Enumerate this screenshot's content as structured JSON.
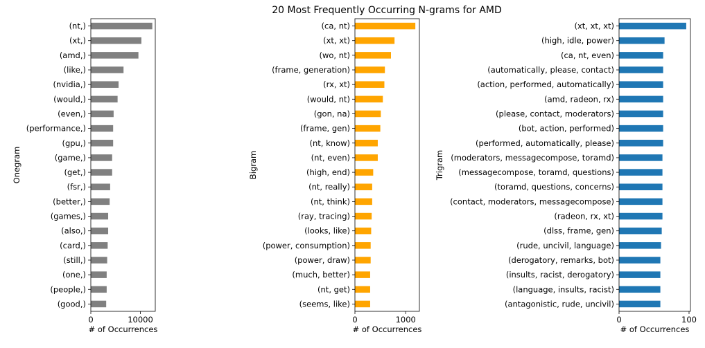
{
  "figure": {
    "suptitle": "20 Most Frequently Occurring N-grams for AMD"
  },
  "chart_data": [
    {
      "type": "bar",
      "orientation": "horizontal",
      "title": "",
      "xlabel": "# of Occurrences",
      "ylabel": "Onegram",
      "color": "#808080",
      "xlim": [
        0,
        13000
      ],
      "xticks": [
        0,
        10000
      ],
      "categories": [
        "(nt,)",
        "(xt,)",
        "(amd,)",
        "(like,)",
        "(nvidia,)",
        "(would,)",
        "(even,)",
        "(performance,)",
        "(gpu,)",
        "(game,)",
        "(get,)",
        "(fsr,)",
        "(better,)",
        "(games,)",
        "(also,)",
        "(card,)",
        "(still,)",
        "(one,)",
        "(people,)",
        "(good,)"
      ],
      "values": [
        12400,
        10200,
        9600,
        6600,
        5600,
        5400,
        4600,
        4500,
        4500,
        4300,
        4300,
        3900,
        3800,
        3500,
        3500,
        3400,
        3300,
        3200,
        3200,
        3100
      ],
      "grid": false,
      "legend": "none"
    },
    {
      "type": "bar",
      "orientation": "horizontal",
      "title": "",
      "xlabel": "# of Occurrences",
      "ylabel": "Bigram",
      "color": "#ffa500",
      "xlim": [
        0,
        1270
      ],
      "xticks": [
        0,
        1000
      ],
      "categories": [
        "(ca, nt)",
        "(xt, xt)",
        "(wo, nt)",
        "(frame, generation)",
        "(rx, xt)",
        "(would, nt)",
        "(gon, na)",
        "(frame, gen)",
        "(nt, know)",
        "(nt, even)",
        "(high, end)",
        "(nt, really)",
        "(nt, think)",
        "(ray, tracing)",
        "(looks, like)",
        "(power, consumption)",
        "(power, draw)",
        "(much, better)",
        "(nt, get)",
        "(seems, like)"
      ],
      "values": [
        1190,
        780,
        710,
        590,
        580,
        550,
        510,
        500,
        450,
        450,
        360,
        340,
        340,
        330,
        320,
        310,
        310,
        300,
        300,
        300
      ],
      "grid": false,
      "legend": "none"
    },
    {
      "type": "bar",
      "orientation": "horizontal",
      "title": "",
      "xlabel": "# of Occurrences",
      "ylabel": "Trigram",
      "color": "#1f77b4",
      "xlim": [
        0,
        102
      ],
      "xticks": [
        0,
        100
      ],
      "categories": [
        "(xt, xt, xt)",
        "(high, idle, power)",
        "(ca, nt, even)",
        "(automatically, please, contact)",
        "(action, performed, automatically)",
        "(amd, radeon, rx)",
        "(please, contact, moderators)",
        "(bot, action, performed)",
        "(performed, automatically, please)",
        "(moderators, messagecompose, toramd)",
        "(messagecompose, toramd, questions)",
        "(toramd, questions, concerns)",
        "(contact, moderators, messagecompose)",
        "(radeon, rx, xt)",
        "(dlss, frame, gen)",
        "(rude, uncivil, language)",
        "(derogatory, remarks, bot)",
        "(insults, racist, derogatory)",
        "(language, insults, racist)",
        "(antagonistic, rude, uncivil)"
      ],
      "values": [
        96,
        65,
        63,
        63,
        63,
        63,
        63,
        63,
        63,
        62,
        62,
        62,
        62,
        62,
        61,
        60,
        59,
        59,
        59,
        59
      ],
      "grid": false,
      "legend": "none"
    }
  ]
}
